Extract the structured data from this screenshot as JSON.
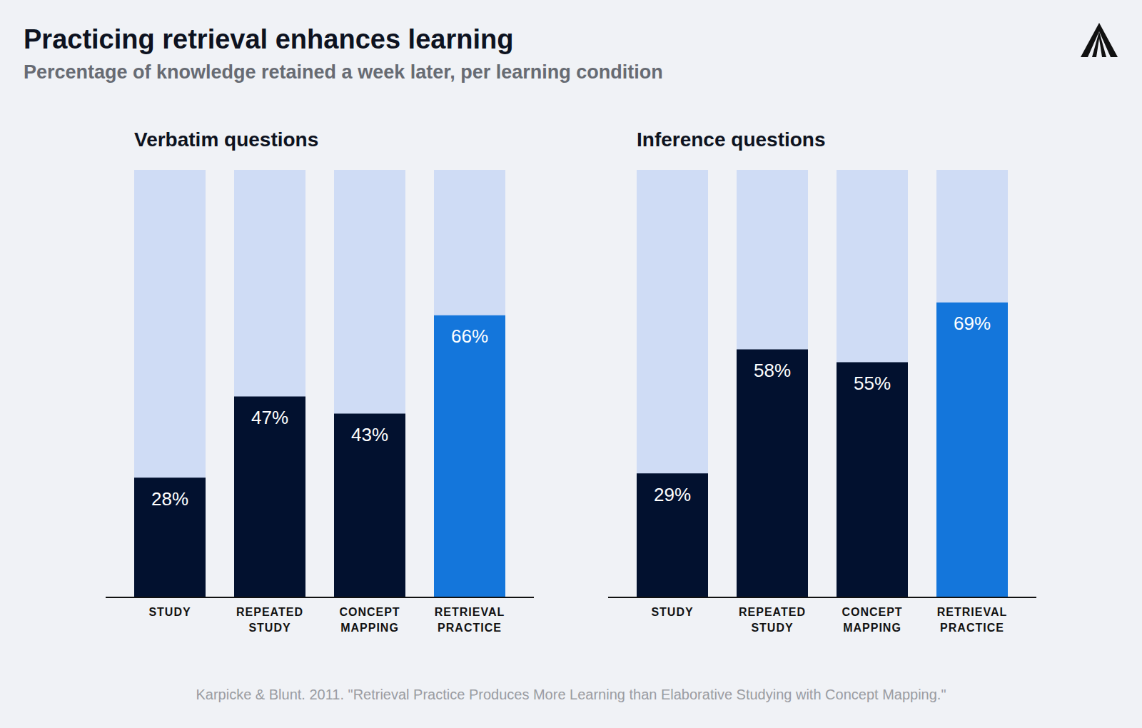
{
  "title": "Practicing retrieval enhances learning",
  "subtitle": "Percentage of knowledge retained a week later, per learning condition",
  "source": "Karpicke & Blunt. 2011. \"Retrieval Practice Produces More Learning than Elaborative Studying with Concept Mapping.\"",
  "chart_data": [
    {
      "type": "bar",
      "title": "Verbatim questions",
      "categories": [
        "STUDY",
        "REPEATED STUDY",
        "CONCEPT MAPPING",
        "RETRIEVAL PRACTICE"
      ],
      "values": [
        28,
        47,
        43,
        66
      ],
      "value_labels": [
        "28%",
        "47%",
        "43%",
        "66%"
      ],
      "colors": [
        "#02112f",
        "#02112f",
        "#02112f",
        "#1476db"
      ],
      "ylim": [
        0,
        100
      ],
      "data_labels": true,
      "tick_labels": "x",
      "grid": false
    },
    {
      "type": "bar",
      "title": "Inference questions",
      "categories": [
        "STUDY",
        "REPEATED STUDY",
        "CONCEPT MAPPING",
        "RETRIEVAL PRACTICE"
      ],
      "values": [
        29,
        58,
        55,
        69
      ],
      "value_labels": [
        "29%",
        "58%",
        "55%",
        "69%"
      ],
      "colors": [
        "#02112f",
        "#02112f",
        "#02112f",
        "#1476db"
      ],
      "ylim": [
        0,
        100
      ],
      "data_labels": true,
      "tick_labels": "x",
      "grid": false
    }
  ]
}
